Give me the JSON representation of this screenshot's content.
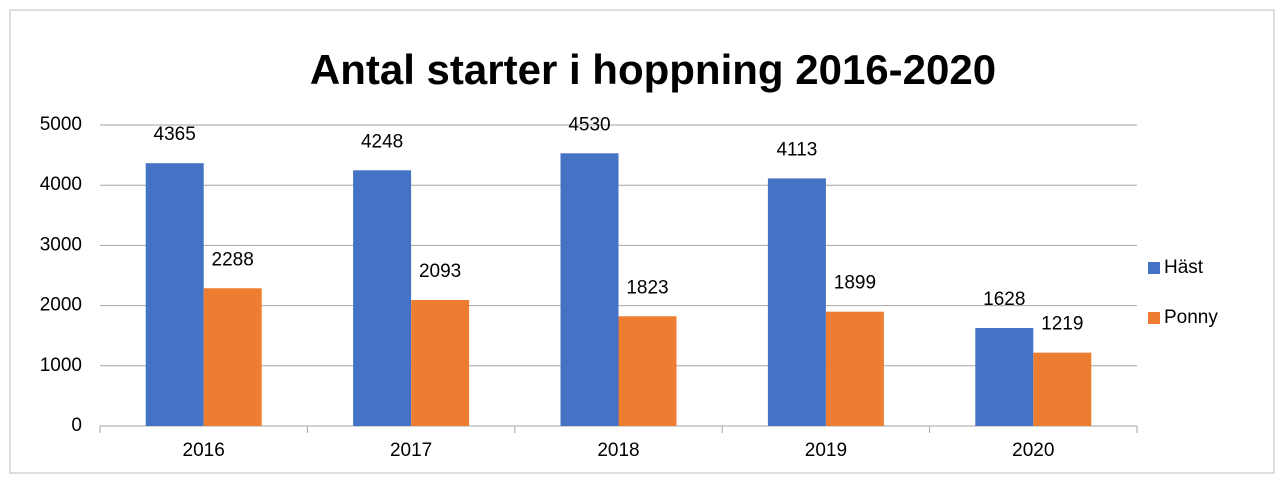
{
  "chart_data": {
    "type": "bar",
    "title": "Antal starter i hoppning 2016-2020",
    "categories": [
      "2016",
      "2017",
      "2018",
      "2019",
      "2020"
    ],
    "series": [
      {
        "name": "Häst",
        "color": "#4472c4",
        "values": [
          4365,
          4248,
          4530,
          4113,
          1628
        ]
      },
      {
        "name": "Ponny",
        "color": "#ed7d31",
        "values": [
          2288,
          2093,
          1823,
          1899,
          1219
        ]
      }
    ],
    "ylim": [
      0,
      5000
    ],
    "yticks": [
      0,
      1000,
      2000,
      3000,
      4000,
      5000
    ],
    "grid": true,
    "legend": "right"
  }
}
